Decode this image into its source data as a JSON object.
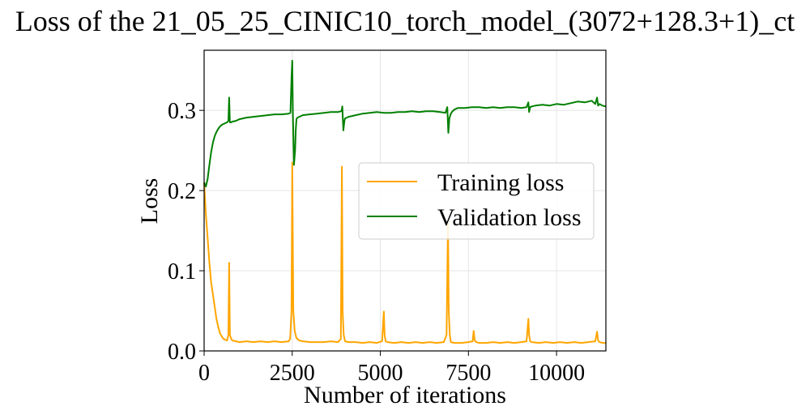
{
  "chart_data": {
    "type": "line",
    "title": "Loss of the 21_05_25_CINIC10_torch_model_(3072+128.3+1)_ct",
    "xlabel": "Number of iterations",
    "ylabel": "Loss",
    "xlim": [
      0,
      11400
    ],
    "ylim": [
      0,
      0.375
    ],
    "xticks": [
      0,
      2500,
      5000,
      7500,
      10000
    ],
    "yticks": [
      0.0,
      0.1,
      0.2,
      0.3
    ],
    "xtick_labels": [
      "0",
      "2500",
      "5000",
      "7500",
      "10000"
    ],
    "ytick_labels": [
      "0.0",
      "0.1",
      "0.2",
      "0.3"
    ],
    "grid": true,
    "legend_position": "center-right",
    "series": [
      {
        "name": "Training loss",
        "color": "#ffa500",
        "x": [
          0,
          50,
          100,
          150,
          200,
          250,
          300,
          350,
          400,
          450,
          500,
          550,
          600,
          650,
          690,
          710,
          730,
          760,
          800,
          900,
          1000,
          1200,
          1400,
          1600,
          1800,
          2000,
          2200,
          2400,
          2440,
          2480,
          2500,
          2530,
          2570,
          2620,
          2700,
          2800,
          3000,
          3200,
          3400,
          3600,
          3800,
          3880,
          3910,
          3930,
          3960,
          4000,
          4100,
          4300,
          4500,
          4700,
          4900,
          5050,
          5100,
          5120,
          5150,
          5200,
          5400,
          5600,
          5800,
          6000,
          6200,
          6400,
          6600,
          6800,
          6880,
          6920,
          6940,
          6970,
          7000,
          7100,
          7300,
          7500,
          7620,
          7650,
          7680,
          7720,
          7800,
          8000,
          8200,
          8400,
          8600,
          8800,
          9000,
          9150,
          9200,
          9220,
          9250,
          9300,
          9500,
          9700,
          9900,
          10100,
          10300,
          10500,
          10700,
          10900,
          11100,
          11150,
          11180,
          11220,
          11300,
          11400
        ],
        "y": [
          0.21,
          0.17,
          0.14,
          0.11,
          0.085,
          0.07,
          0.055,
          0.04,
          0.03,
          0.022,
          0.018,
          0.015,
          0.014,
          0.013,
          0.02,
          0.11,
          0.02,
          0.016,
          0.013,
          0.012,
          0.011,
          0.012,
          0.011,
          0.012,
          0.011,
          0.012,
          0.011,
          0.012,
          0.015,
          0.05,
          0.235,
          0.05,
          0.025,
          0.016,
          0.013,
          0.012,
          0.011,
          0.011,
          0.011,
          0.012,
          0.011,
          0.015,
          0.23,
          0.05,
          0.02,
          0.012,
          0.011,
          0.011,
          0.01,
          0.011,
          0.01,
          0.012,
          0.049,
          0.02,
          0.012,
          0.011,
          0.01,
          0.011,
          0.01,
          0.011,
          0.01,
          0.011,
          0.01,
          0.011,
          0.02,
          0.16,
          0.05,
          0.02,
          0.011,
          0.01,
          0.01,
          0.011,
          0.012,
          0.025,
          0.013,
          0.011,
          0.01,
          0.01,
          0.011,
          0.01,
          0.011,
          0.01,
          0.011,
          0.012,
          0.04,
          0.02,
          0.012,
          0.011,
          0.01,
          0.011,
          0.01,
          0.011,
          0.01,
          0.011,
          0.01,
          0.011,
          0.012,
          0.024,
          0.013,
          0.011,
          0.01,
          0.01
        ]
      },
      {
        "name": "Validation loss",
        "color": "#008000",
        "x": [
          0,
          50,
          100,
          150,
          200,
          250,
          300,
          350,
          400,
          450,
          500,
          550,
          600,
          650,
          690,
          710,
          730,
          760,
          800,
          900,
          1000,
          1200,
          1400,
          1600,
          1800,
          2000,
          2200,
          2400,
          2450,
          2480,
          2500,
          2520,
          2550,
          2580,
          2600,
          2620,
          2650,
          2700,
          2800,
          3000,
          3200,
          3400,
          3600,
          3800,
          3900,
          3920,
          3950,
          3980,
          4000,
          4100,
          4300,
          4500,
          4700,
          4900,
          5100,
          5300,
          5500,
          5700,
          5900,
          6100,
          6300,
          6500,
          6700,
          6850,
          6900,
          6930,
          6960,
          7000,
          7050,
          7100,
          7200,
          7400,
          7600,
          7800,
          8000,
          8200,
          8400,
          8600,
          8800,
          9000,
          9150,
          9200,
          9220,
          9250,
          9300,
          9400,
          9600,
          9800,
          10000,
          10200,
          10400,
          10600,
          10800,
          11000,
          11100,
          11150,
          11180,
          11220,
          11300,
          11400
        ],
        "y": [
          0.21,
          0.205,
          0.215,
          0.232,
          0.248,
          0.26,
          0.268,
          0.273,
          0.277,
          0.28,
          0.282,
          0.283,
          0.284,
          0.285,
          0.287,
          0.316,
          0.285,
          0.285,
          0.286,
          0.287,
          0.289,
          0.291,
          0.292,
          0.293,
          0.294,
          0.295,
          0.295,
          0.296,
          0.297,
          0.34,
          0.362,
          0.295,
          0.232,
          0.25,
          0.275,
          0.289,
          0.291,
          0.292,
          0.294,
          0.295,
          0.296,
          0.297,
          0.298,
          0.298,
          0.299,
          0.305,
          0.275,
          0.287,
          0.29,
          0.292,
          0.294,
          0.296,
          0.297,
          0.298,
          0.297,
          0.297,
          0.298,
          0.298,
          0.299,
          0.298,
          0.299,
          0.299,
          0.298,
          0.297,
          0.304,
          0.272,
          0.29,
          0.296,
          0.299,
          0.301,
          0.303,
          0.303,
          0.304,
          0.304,
          0.303,
          0.304,
          0.303,
          0.304,
          0.304,
          0.303,
          0.304,
          0.31,
          0.298,
          0.304,
          0.305,
          0.306,
          0.307,
          0.306,
          0.308,
          0.307,
          0.309,
          0.311,
          0.31,
          0.312,
          0.308,
          0.316,
          0.306,
          0.308,
          0.306,
          0.305
        ]
      }
    ]
  }
}
